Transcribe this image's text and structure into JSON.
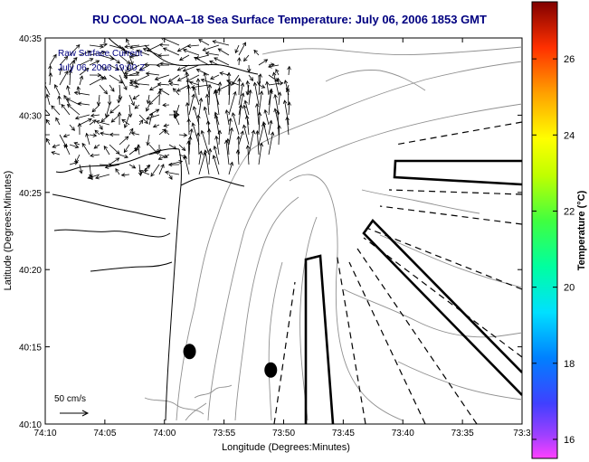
{
  "title": "RU COOL  NOAA–18  Sea Surface Temperature:  July 06, 2006 1853 GMT",
  "annotations": {
    "current_label": "Raw Surface Current",
    "current_time": "July 06, 2006 19:00 Z",
    "scale_label": "50 cm/s"
  },
  "axes": {
    "xlabel": "Longitude (Degrees:Minutes)",
    "ylabel": "Latitude (Degrees:Minutes)",
    "x_ticks": [
      "74:10",
      "74:05",
      "74:00",
      "73:55",
      "73:50",
      "73:45",
      "73:40",
      "73:35",
      "73:3"
    ],
    "y_ticks": [
      "40:35",
      "40:30",
      "40:25",
      "40:20",
      "40:15",
      "40:10"
    ]
  },
  "colorbar": {
    "label": "Temperature (°C)",
    "ticks": [
      "26",
      "24",
      "22",
      "20",
      "18",
      "16"
    ],
    "range": [
      15.5,
      27.5
    ]
  },
  "map_data": {
    "lon_range_minutes": [
      -74.1667,
      -73.55
    ],
    "lat_range_minutes": [
      40.1667,
      40.5833
    ],
    "stations": [
      {
        "lon": -73.98,
        "lat": 40.245
      },
      {
        "lon": -73.875,
        "lat": 40.225
      }
    ]
  },
  "colors": {
    "title": "#000080",
    "outline": "#000000",
    "contour": "#808080"
  }
}
